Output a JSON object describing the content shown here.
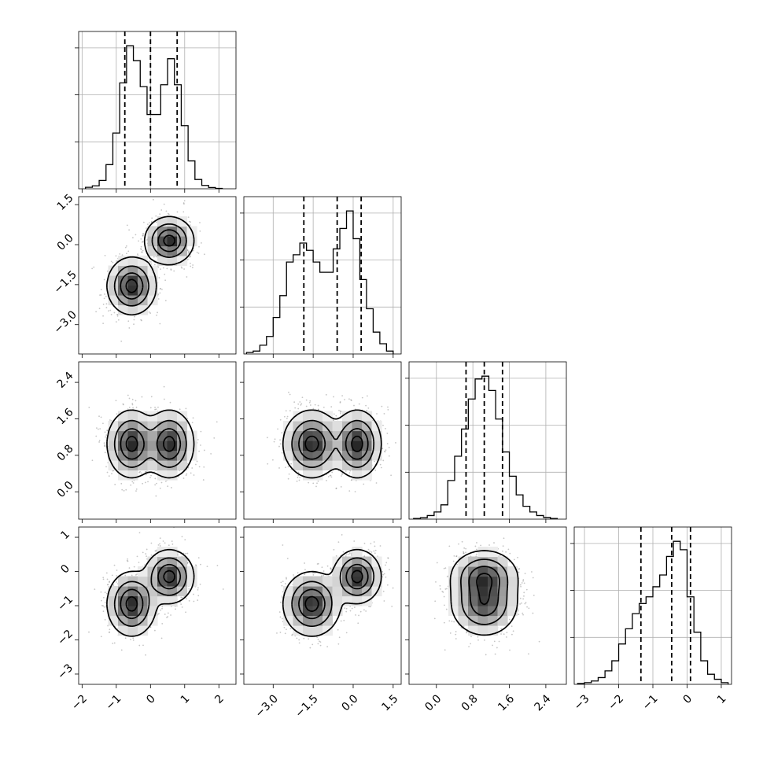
{
  "chart_data": {
    "type": "corner",
    "dimensions": [
      {
        "index": 0,
        "range": [
          -2.1,
          2.5
        ],
        "ticks": [
          -2,
          -1,
          0,
          1,
          2
        ],
        "tick_labels": [
          "−2",
          "−1",
          "0",
          "1",
          "2"
        ],
        "quantiles": [
          -0.75,
          0.0,
          0.78
        ],
        "modes": [
          {
            "mean": -0.55,
            "sd": 0.32,
            "weight": 0.5
          },
          {
            "mean": 0.55,
            "sd": 0.32,
            "weight": 0.5
          }
        ],
        "hist": {
          "bins": [
            -1.9,
            -1.7,
            -1.5,
            -1.3,
            -1.1,
            -0.9,
            -0.7,
            -0.5,
            -0.3,
            -0.1,
            0.1,
            0.3,
            0.5,
            0.7,
            0.9,
            1.1,
            1.3,
            1.5,
            1.7,
            1.9,
            2.1
          ],
          "counts": [
            0.8,
            1.6,
            4.5,
            13,
            30,
            57,
            77,
            69,
            55,
            40,
            40,
            56,
            70,
            56,
            34,
            15,
            5,
            1.8,
            0.7,
            0.2
          ]
        }
      },
      {
        "index": 1,
        "range": [
          -4.1,
          1.8
        ],
        "ticks": [
          -3.0,
          -1.5,
          0.0,
          1.5
        ],
        "tick_labels": [
          "−3.0",
          "−1.5",
          "0.0",
          "1.5"
        ],
        "quantiles": [
          -1.85,
          -0.6,
          0.3
        ],
        "modes": [
          {
            "mean": -1.55,
            "sd": 0.48,
            "weight": 0.5
          },
          {
            "mean": 0.15,
            "sd": 0.4,
            "weight": 0.5
          }
        ],
        "hist": {
          "bins": [
            -4.0,
            -3.75,
            -3.5,
            -3.25,
            -3.0,
            -2.75,
            -2.5,
            -2.25,
            -2.0,
            -1.75,
            -1.5,
            -1.25,
            -1.0,
            -0.75,
            -0.5,
            -0.25,
            0.0,
            0.25,
            0.5,
            0.75,
            1.0,
            1.25,
            1.5
          ],
          "counts": [
            1,
            2,
            6,
            12,
            25,
            40,
            63,
            68,
            76,
            71,
            63,
            56,
            56,
            72,
            86,
            98,
            79,
            51,
            31,
            15,
            7,
            2
          ]
        }
      },
      {
        "index": 2,
        "range": [
          -0.6,
          2.85
        ],
        "ticks": [
          0.0,
          0.8,
          1.6,
          2.4
        ],
        "tick_labels": [
          "0.0",
          "0.8",
          "1.6",
          "2.4"
        ],
        "quantiles": [
          0.65,
          1.05,
          1.45
        ],
        "modes": [
          {
            "mean": 1.05,
            "sd": 0.33,
            "weight": 1.0
          }
        ],
        "hist": {
          "bins": [
            -0.5,
            -0.35,
            -0.2,
            -0.05,
            0.1,
            0.25,
            0.4,
            0.55,
            0.7,
            0.85,
            1.0,
            1.15,
            1.3,
            1.45,
            1.6,
            1.75,
            1.9,
            2.05,
            2.2,
            2.35,
            2.5,
            2.65
          ],
          "counts": [
            0.5,
            1,
            2.5,
            5,
            10,
            27,
            44,
            63,
            84,
            98,
            100,
            90,
            70,
            47,
            30,
            17,
            9,
            5,
            2.5,
            1.2,
            0.5
          ]
        }
      },
      {
        "index": 3,
        "range": [
          -3.3,
          1.3
        ],
        "ticks": [
          -3,
          -2,
          -1,
          0,
          1
        ],
        "tick_labels": [
          "−3",
          "−2",
          "−1",
          "0",
          "1"
        ],
        "quantiles": [
          -1.35,
          -0.45,
          0.1
        ],
        "modes": [
          {
            "mean": -0.95,
            "sd": 0.42,
            "weight": 0.5
          },
          {
            "mean": -0.15,
            "sd": 0.35,
            "weight": 0.5
          }
        ],
        "hist": {
          "bins": [
            -3.2,
            -3.0,
            -2.8,
            -2.6,
            -2.4,
            -2.2,
            -2.0,
            -1.8,
            -1.6,
            -1.4,
            -1.2,
            -1.0,
            -0.8,
            -0.6,
            -0.4,
            -0.2,
            0.0,
            0.2,
            0.4,
            0.6,
            0.8,
            1.0,
            1.2
          ],
          "counts": [
            0.5,
            1,
            2,
            4,
            8,
            14,
            24,
            33,
            42,
            48,
            52,
            58,
            65,
            76,
            85,
            80,
            52,
            31,
            14,
            6,
            3,
            1
          ]
        }
      }
    ],
    "pairs": [
      {
        "x": 0,
        "y": 1,
        "covariance": "positive-bimodal"
      },
      {
        "x": 0,
        "y": 2,
        "covariance": "uncorrelated-bimodal"
      },
      {
        "x": 1,
        "y": 2,
        "covariance": "uncorrelated-bimodal"
      },
      {
        "x": 0,
        "y": 3,
        "covariance": "positive-bimodal"
      },
      {
        "x": 1,
        "y": 3,
        "covariance": "positive-bimodal"
      },
      {
        "x": 2,
        "y": 3,
        "covariance": "uncorrelated-unimodal"
      }
    ],
    "grid": true,
    "colors": {
      "frame": "#000000",
      "grid": "#b0b0b0",
      "points": "#808080",
      "hist_dark": "#000000",
      "hist_light": "#ffffff"
    },
    "title": "",
    "xlabel": "",
    "ylabel": ""
  }
}
